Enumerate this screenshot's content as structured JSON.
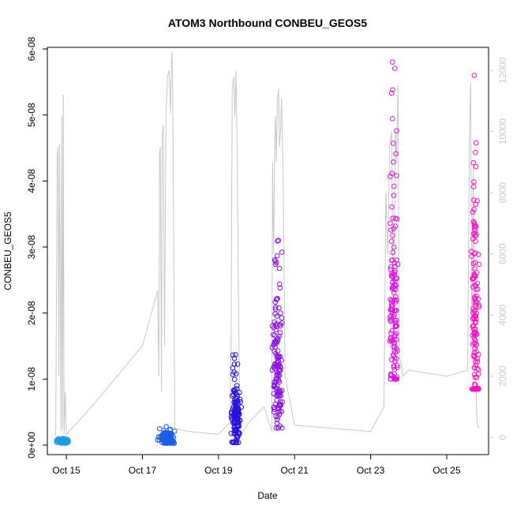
{
  "chart_data": {
    "type": "scatter",
    "title": "ATOM3 Northbound CONBEU_GEOS5",
    "xlabel": "Date",
    "ylabel": "CONBEU_GEOS5",
    "x_ticks": [
      "Oct 15",
      "Oct 17",
      "Oct 19",
      "Oct 21",
      "Oct 23",
      "Oct 25"
    ],
    "x_tick_days": [
      15,
      17,
      19,
      21,
      23,
      25
    ],
    "xlim": [
      14.5,
      26.1
    ],
    "y_left_ticks": [
      "0e+00",
      "1e-08",
      "2e-08",
      "3e-08",
      "4e-08",
      "5e-08",
      "6e-08"
    ],
    "y_left_tick_values": [
      0,
      1e-08,
      2e-08,
      3e-08,
      4e-08,
      5e-08,
      6e-08
    ],
    "ylim_left": [
      0,
      6e-08
    ],
    "y_right_ticks": [
      "0",
      "2000",
      "4000",
      "6000",
      "8000",
      "10000",
      "12000"
    ],
    "y_right_tick_values": [
      0,
      2000,
      4000,
      6000,
      8000,
      10000,
      12000
    ],
    "ylim_right": [
      -250,
      12700
    ],
    "grid": false,
    "legend": "none",
    "colors": {
      "altitude_line": "#c8c8c8",
      "flight_oct14": "#1a9be6",
      "flight_oct17": "#1a5fe6",
      "flight_oct19": "#2a10e0",
      "flight_oct20": "#8a10e8",
      "flight_oct23": "#e010e8",
      "flight_oct25": "#ff10c8"
    },
    "series": [
      {
        "color_key": "flight_oct14",
        "x": [
          14.75,
          15.05
        ],
        "y": [
          3e-10,
          1e-09
        ],
        "clusters": [
          {
            "x": 14.9,
            "sd": 0.12,
            "y": 6e-10,
            "ysd": 1.5e-10
          }
        ]
      },
      {
        "color_key": "flight_oct17",
        "x": [
          17.4,
          17.85
        ],
        "y": [
          3e-10,
          2.8e-09
        ],
        "clusters": [
          {
            "x": 17.65,
            "sd": 0.15,
            "y": 1e-09,
            "ysd": 4e-10
          }
        ]
      },
      {
        "color_key": "flight_oct19",
        "x": [
          19.3,
          19.6
        ],
        "y": [
          4e-10,
          1.37e-08
        ],
        "clusters": [
          {
            "x": 19.45,
            "sd": 0.1,
            "y": 4e-09,
            "ysd": 2.5e-09
          }
        ]
      },
      {
        "color_key": "flight_oct20",
        "x": [
          20.4,
          20.75
        ],
        "y": [
          2.6e-09,
          3.1e-08
        ],
        "clusters": [
          {
            "x": 20.55,
            "sd": 0.1,
            "y": 1.2e-08,
            "ysd": 5e-09
          }
        ]
      },
      {
        "color_key": "flight_oct23",
        "x": [
          23.4,
          23.75
        ],
        "y": [
          1e-08,
          5.8e-08
        ],
        "clusters": [
          {
            "x": 23.6,
            "sd": 0.1,
            "y": 2.1e-08,
            "ysd": 8e-09
          }
        ]
      },
      {
        "color_key": "flight_oct25",
        "x": [
          25.6,
          25.85
        ],
        "y": [
          8.5e-09,
          5.6e-08
        ],
        "clusters": [
          {
            "x": 25.75,
            "sd": 0.07,
            "y": 1.9e-08,
            "ysd": 1e-08
          }
        ]
      }
    ],
    "altitude_profile": {
      "x": [
        14.72,
        14.74,
        14.76,
        14.78,
        14.8,
        14.82,
        14.86,
        14.88,
        14.9,
        14.92,
        14.94,
        14.97,
        15.0,
        15.3,
        16.0,
        17.0,
        17.4,
        17.43,
        17.45,
        17.47,
        17.5,
        17.52,
        17.55,
        17.58,
        17.62,
        17.66,
        17.7,
        17.74,
        17.76,
        17.78,
        17.8,
        17.85,
        18.2,
        19.0,
        19.3,
        19.33,
        19.36,
        19.4,
        19.43,
        19.46,
        19.49,
        19.52,
        19.56,
        19.6,
        19.8,
        20.2,
        20.4,
        20.42,
        20.45,
        20.48,
        20.5,
        20.52,
        20.55,
        20.58,
        20.6,
        20.63,
        20.66,
        20.7,
        20.75,
        21.0,
        22.0,
        23.0,
        23.35,
        23.4,
        23.45,
        23.5,
        23.55,
        23.6,
        23.65,
        23.68,
        23.72,
        23.75,
        23.85,
        24.0,
        25.0,
        25.55,
        25.6,
        25.63,
        25.66,
        25.7,
        25.73,
        25.76,
        25.8,
        25.85
      ],
      "y": [
        50,
        5000,
        9200,
        9500,
        2000,
        9600,
        200,
        10500,
        300,
        11200,
        100,
        1500,
        100,
        500,
        1500,
        3000,
        4800,
        2000,
        9300,
        9500,
        1500,
        9900,
        10200,
        3000,
        10700,
        11800,
        12000,
        10600,
        12200,
        12600,
        11000,
        300,
        200,
        100,
        500,
        3000,
        11300,
        11800,
        10500,
        12000,
        9500,
        5000,
        1000,
        100,
        500,
        1000,
        200,
        9000,
        6000,
        9700,
        10500,
        9000,
        11000,
        11400,
        9500,
        10000,
        11100,
        8500,
        2000,
        400,
        300,
        200,
        1000,
        8000,
        6000,
        9500,
        10000,
        3500,
        10000,
        9000,
        11500,
        2700,
        2000,
        2200,
        2000,
        2200,
        10000,
        11600,
        3000,
        9000,
        2000,
        2000,
        500,
        300
      ]
    }
  }
}
